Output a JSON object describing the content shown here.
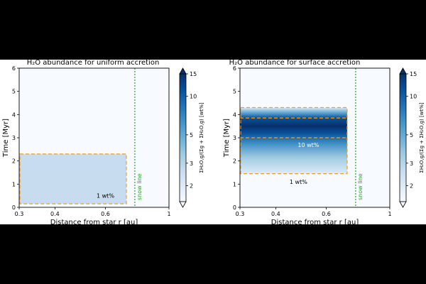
{
  "chart_data": [
    {
      "type": "heatmap",
      "title": "H₂O abundance for uniform accretion",
      "xlabel": "Distance from star r [au]",
      "ylabel": "Time  [Myr]",
      "xscale": "log",
      "xlim": [
        0.3,
        1.0
      ],
      "ylim": [
        0,
        6
      ],
      "xticks": [
        "0.3",
        "0.4",
        "0.6",
        "1"
      ],
      "yticks": [
        "0",
        "1",
        "2",
        "3",
        "4",
        "5",
        "6"
      ],
      "snow_line": {
        "label": "snow line",
        "r": 0.76,
        "color": "#2ca02c"
      },
      "background_color": "#f7fbff",
      "region": {
        "r_min": 0.3,
        "r_max": 0.71,
        "t_min": 0.15,
        "t_max": 2.3,
        "color": "#c7dcef"
      },
      "box": {
        "r_min": 0.3,
        "r_max": 0.71,
        "t_min": 0.15,
        "t_max": 2.3,
        "color": "#f0a020"
      },
      "contours": [
        {
          "label": "1 wt%",
          "r_label": 0.6,
          "t_label": 0.5
        }
      ]
    },
    {
      "type": "heatmap",
      "title": "H₂O abundance for surface accretion",
      "xlabel": "Distance from star r [au]",
      "ylabel": "Time  [Myr]",
      "xscale": "log",
      "xlim": [
        0.3,
        1.0
      ],
      "ylim": [
        0,
        6
      ],
      "xticks": [
        "0.3",
        "0.4",
        "0.6",
        "1"
      ],
      "yticks": [
        "0",
        "1",
        "2",
        "3",
        "4",
        "5",
        "6"
      ],
      "snow_line": {
        "label": "snow line",
        "r": 0.76,
        "color": "#2ca02c"
      },
      "background_color": "#f7fbff",
      "band": {
        "r_min": 0.3,
        "r_max": 0.71,
        "t_min": 1.45,
        "t_max": 4.3,
        "t_peak": 3.5
      },
      "box": {
        "r_min": 0.3,
        "r_max": 0.71,
        "t_min": 1.45,
        "t_max": 4.3,
        "color": "#f0a020"
      },
      "inner_contour": {
        "t_min": 3.0,
        "t_max": 3.85,
        "color": "#f0a020"
      },
      "contours": [
        {
          "label": "10 wt%",
          "r_label": 0.52,
          "t_label": 2.7
        },
        {
          "label": "1 wt%",
          "r_label": 0.48,
          "t_label": 1.1
        }
      ]
    }
  ],
  "colorbar": {
    "label": "ΣH₂O,g/(Σg + ΣH₂O,g) [wt%]",
    "ticks": [
      "2",
      "3",
      "5",
      "10",
      "15"
    ],
    "tick_values": [
      2,
      3,
      5,
      10,
      15
    ],
    "range": [
      1.5,
      15
    ],
    "colors": [
      "#f7fbff",
      "#deebf7",
      "#c6dbef",
      "#9ecae1",
      "#6baed6",
      "#4292c6",
      "#2171b5",
      "#08519c",
      "#08306b"
    ]
  }
}
